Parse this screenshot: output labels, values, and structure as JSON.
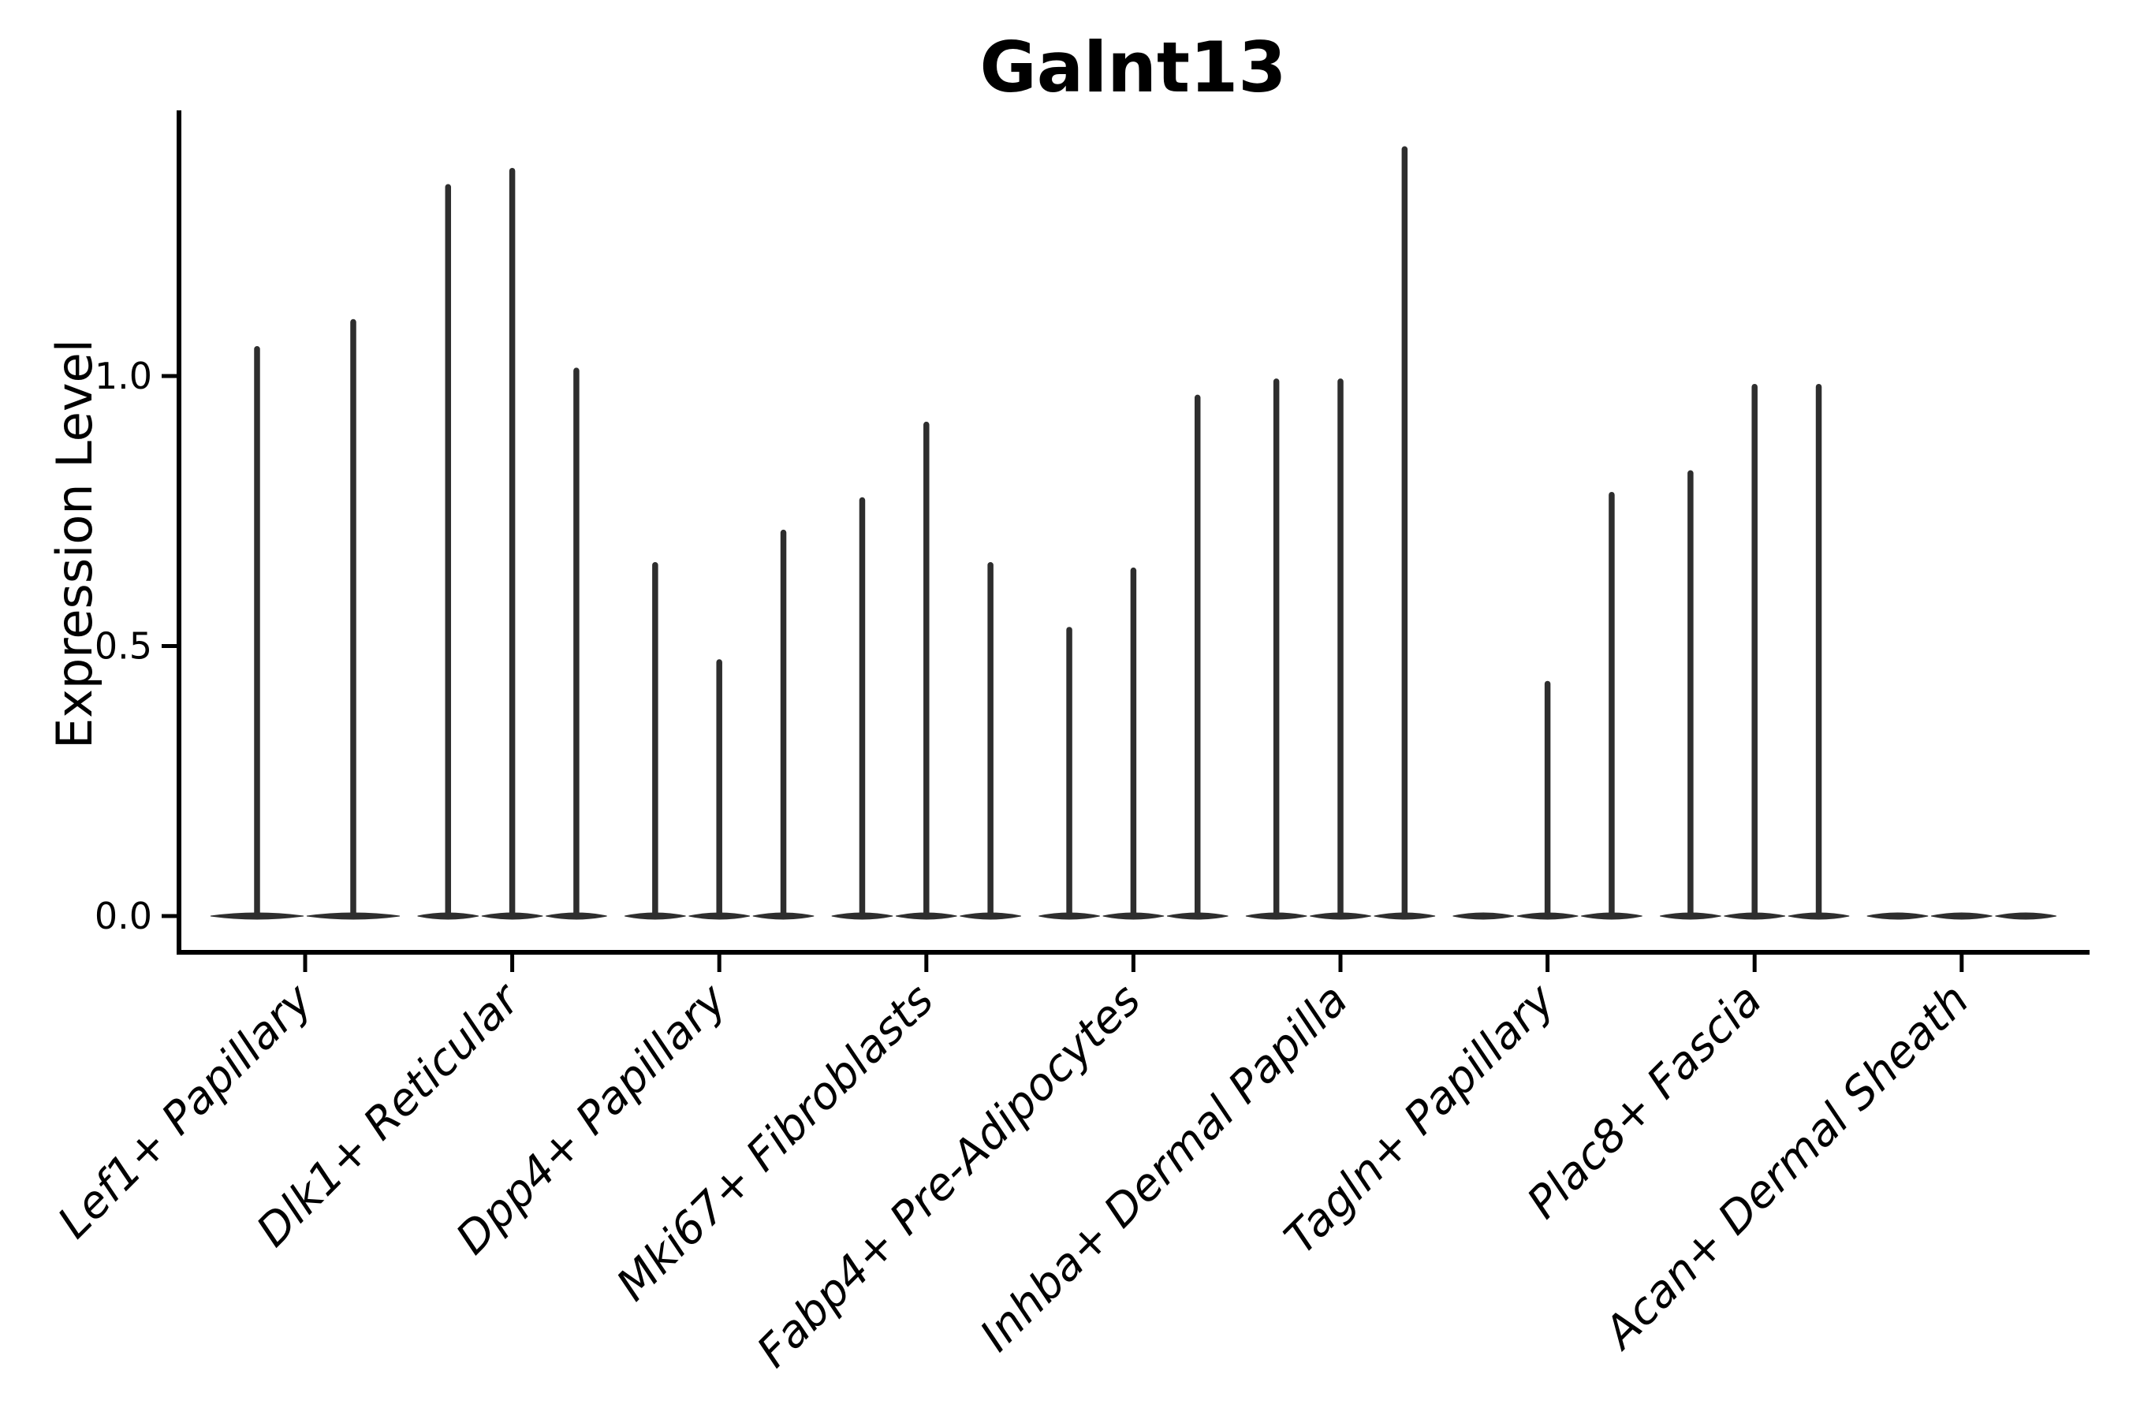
{
  "figure": {
    "title": "Galnt13",
    "ylabel": "Expression Level"
  },
  "chart_data": {
    "type": "violin",
    "title": "Galnt13",
    "xlabel": "",
    "ylabel": "Expression Level",
    "ylim": [
      -0.07,
      1.49
    ],
    "yticks": [
      0.0,
      0.5,
      1.0
    ],
    "ytick_labels": [
      "0.0",
      "0.5",
      "1.0"
    ],
    "grid": false,
    "legend_position": "none",
    "categories": [
      "Lef1+ Papillary",
      "Dlk1+ Reticular",
      "Dpp4+ Papillary",
      "Mki67+ Fibroblasts",
      "Fabp4+ Pre-Adipocytes",
      "Inhba+ Dermal Papilla",
      "Tagln+ Papillary",
      "Plac8+ Fascia",
      "Acan+ Dermal Sheath"
    ],
    "series": [
      {
        "category": "Lef1+ Papillary",
        "violin_maxima": [
          1.05,
          1.1
        ]
      },
      {
        "category": "Dlk1+ Reticular",
        "violin_maxima": [
          1.35,
          1.38,
          1.01
        ]
      },
      {
        "category": "Dpp4+ Papillary",
        "violin_maxima": [
          0.65,
          0.47,
          0.71
        ]
      },
      {
        "category": "Mki67+ Fibroblasts",
        "violin_maxima": [
          0.77,
          0.91,
          0.65
        ]
      },
      {
        "category": "Fabp4+ Pre-Adipocytes",
        "violin_maxima": [
          0.53,
          0.64,
          0.96
        ]
      },
      {
        "category": "Inhba+ Dermal Papilla",
        "violin_maxima": [
          0.99,
          0.99,
          1.42
        ]
      },
      {
        "category": "Tagln+ Papillary",
        "violin_maxima": [
          0.0,
          0.43,
          0.78
        ]
      },
      {
        "category": "Plac8+ Fascia",
        "violin_maxima": [
          0.82,
          0.98,
          0.98
        ]
      },
      {
        "category": "Acan+ Dermal Sheath",
        "violin_maxima": [
          0.0,
          0.0,
          0.0
        ]
      }
    ],
    "note": "Violins are collapsed at 0 (flat lens at baseline) with a thin vertical tail up to each listed maximum expression value; violins with maximum 0 show only the flat baseline lens.",
    "violin_color": "#2e2e2e",
    "axis_color": "#000000",
    "background_color": "#ffffff"
  }
}
